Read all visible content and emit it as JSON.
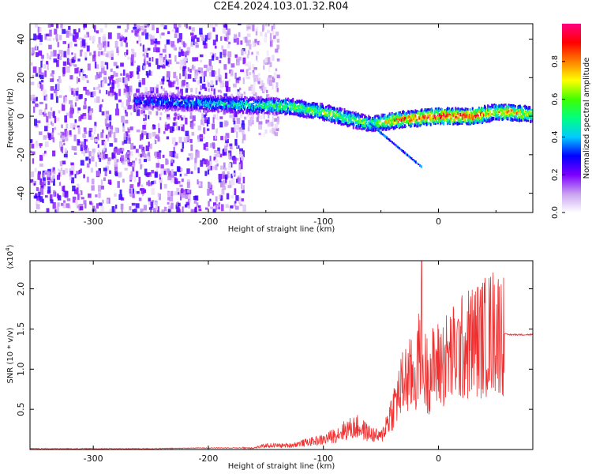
{
  "page": {
    "title": "C2E4.2024.103.01.32.R04"
  },
  "chart_data": [
    {
      "type": "heatmap",
      "title": "C2E4.2024.103.01.32.R04",
      "xlabel": "Height of straight line (km)",
      "ylabel": "Frequency (Hz)",
      "xlim": [
        -355,
        82
      ],
      "ylim": [
        -50,
        48
      ],
      "xticks": [
        -300,
        -200,
        -100,
        0
      ],
      "yticks": [
        -40,
        -20,
        0,
        20,
        40
      ],
      "grid": false,
      "colorbar": {
        "label": "Normalized spectral amplitude",
        "range": [
          0.0,
          1.0
        ],
        "ticks": [
          "0.0",
          "0.2",
          "0.4",
          "0.6",
          "0.8"
        ],
        "tick_values": [
          0.0,
          0.2,
          0.4,
          0.6,
          0.8
        ],
        "colors": [
          "#ffffff",
          "#c9a0f0",
          "#7c00ff",
          "#0000ff",
          "#00ccff",
          "#00ff80",
          "#40ff00",
          "#ffff00",
          "#ff8000",
          "#ff0000",
          "#ff0080"
        ]
      },
      "ridge": {
        "x": [
          -265,
          -180,
          -130,
          -100,
          -60,
          -35,
          0,
          30,
          48,
          60,
          82
        ],
        "y": [
          8,
          6,
          5,
          2,
          -4,
          -2,
          0,
          0,
          2,
          2,
          1
        ],
        "amplitude": [
          0.3,
          0.45,
          0.55,
          0.6,
          0.55,
          0.8,
          0.9,
          0.85,
          0.7,
          0.8,
          0.6
        ]
      },
      "noise_regions": [
        {
          "x": [
            -355,
            -170
          ],
          "y": [
            -50,
            48
          ],
          "amplitude": 0.15
        },
        {
          "x": [
            -170,
            -140
          ],
          "y": [
            -10,
            48
          ],
          "amplitude": 0.08
        }
      ]
    },
    {
      "type": "line",
      "xlabel": "Height of straight line (km)",
      "ylabel": "SNR (10 * v/v)",
      "y_multiplier": "(x10",
      "y_multiplier_exp": "4",
      "y_multiplier_close": ")",
      "xlim": [
        -355,
        82
      ],
      "ylim": [
        0,
        2.35
      ],
      "xticks": [
        -300,
        -200,
        -100,
        0
      ],
      "yticks": [
        0.5,
        1.0,
        1.5,
        2.0
      ],
      "color": "#f03030",
      "series": [
        {
          "x": [
            -355,
            -300,
            -250,
            -200,
            -160,
            -150,
            -130,
            -110,
            -100,
            -90,
            -80,
            -70,
            -60,
            -50,
            -40,
            -30,
            -25,
            -20,
            -16,
            -15,
            -14,
            -10,
            0,
            10,
            20,
            30,
            40,
            50,
            55,
            60,
            82
          ],
          "y": [
            0.01,
            0.01,
            0.01,
            0.02,
            0.02,
            0.05,
            0.05,
            0.1,
            0.12,
            0.18,
            0.25,
            0.28,
            0.2,
            0.15,
            0.5,
            0.85,
            0.9,
            0.9,
            1.2,
            2.35,
            1.0,
            0.95,
            1.05,
            1.15,
            1.25,
            1.35,
            1.4,
            1.5,
            1.45,
            1.43,
            1.43
          ]
        }
      ]
    }
  ]
}
